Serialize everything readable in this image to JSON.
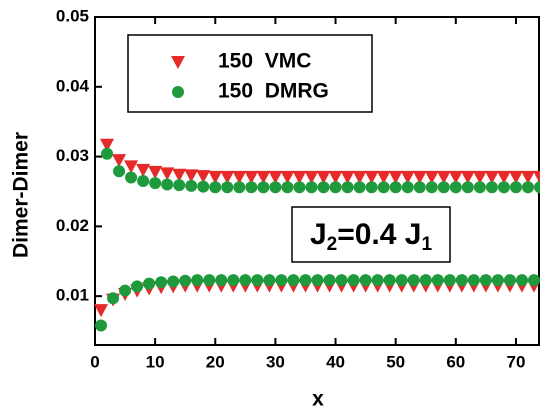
{
  "chart_data": {
    "type": "scatter",
    "xlabel": "x",
    "ylabel": "Dimer-Dimer",
    "annotation": {
      "parts": [
        "J",
        "2",
        "=0.4 J",
        "1"
      ]
    },
    "xlim": [
      0,
      74
    ],
    "ylim": [
      0.003,
      0.05
    ],
    "xticks": [
      0,
      10,
      20,
      30,
      40,
      50,
      60,
      70
    ],
    "yticks": [
      0.01,
      0.02,
      0.03,
      0.04,
      0.05
    ],
    "x": [
      1,
      2,
      3,
      4,
      5,
      6,
      7,
      8,
      9,
      10,
      11,
      12,
      13,
      14,
      15,
      16,
      17,
      18,
      19,
      20,
      21,
      22,
      23,
      24,
      25,
      26,
      27,
      28,
      29,
      30,
      31,
      32,
      33,
      34,
      35,
      36,
      37,
      38,
      39,
      40,
      41,
      42,
      43,
      44,
      45,
      46,
      47,
      48,
      49,
      50,
      51,
      52,
      53,
      54,
      55,
      56,
      57,
      58,
      59,
      60,
      61,
      62,
      63,
      64,
      65,
      66,
      67,
      68,
      69,
      70,
      71,
      72,
      73,
      74
    ],
    "series": [
      {
        "name": "150  VMC",
        "color": "#e62a2a",
        "marker": "triangle-down",
        "values": [
          0.008,
          0.0317,
          0.0095,
          0.0295,
          0.0103,
          0.0286,
          0.0108,
          0.0281,
          0.0111,
          0.0278,
          0.0113,
          0.0276,
          0.0114,
          0.0274,
          0.0115,
          0.0273,
          0.0115,
          0.0272,
          0.0115,
          0.0271,
          0.0115,
          0.0271,
          0.0115,
          0.0271,
          0.0115,
          0.0271,
          0.0115,
          0.0271,
          0.0115,
          0.0271,
          0.0115,
          0.0271,
          0.0115,
          0.0271,
          0.0115,
          0.0271,
          0.0115,
          0.0271,
          0.0115,
          0.0271,
          0.0115,
          0.0271,
          0.0115,
          0.0271,
          0.0115,
          0.0271,
          0.0115,
          0.0271,
          0.0115,
          0.0271,
          0.0115,
          0.0271,
          0.0115,
          0.0271,
          0.0115,
          0.0271,
          0.0115,
          0.0271,
          0.0115,
          0.0271,
          0.0115,
          0.0271,
          0.0115,
          0.0271,
          0.0115,
          0.0271,
          0.0115,
          0.0271,
          0.0115,
          0.0271,
          0.0115,
          0.0271,
          0.0115,
          0.0271
        ]
      },
      {
        "name": "150  DMRG",
        "color": "#1e9a3c",
        "marker": "circle",
        "values": [
          0.0058,
          0.0304,
          0.0097,
          0.0279,
          0.0108,
          0.027,
          0.0114,
          0.0265,
          0.0118,
          0.0262,
          0.012,
          0.026,
          0.0121,
          0.0259,
          0.0122,
          0.0258,
          0.0123,
          0.0257,
          0.0123,
          0.0256,
          0.0123,
          0.0256,
          0.0123,
          0.0256,
          0.0123,
          0.0256,
          0.0123,
          0.0256,
          0.0123,
          0.0256,
          0.0123,
          0.0256,
          0.0123,
          0.0256,
          0.0123,
          0.0256,
          0.0123,
          0.0256,
          0.0123,
          0.0256,
          0.0123,
          0.0256,
          0.0123,
          0.0256,
          0.0123,
          0.0256,
          0.0123,
          0.0256,
          0.0123,
          0.0256,
          0.0123,
          0.0256,
          0.0123,
          0.0256,
          0.0123,
          0.0256,
          0.0123,
          0.0256,
          0.0123,
          0.0256,
          0.0123,
          0.0256,
          0.0123,
          0.0256,
          0.0123,
          0.0256,
          0.0123,
          0.0256,
          0.0123,
          0.0256,
          0.0123,
          0.0256,
          0.0123,
          0.0256
        ]
      }
    ]
  }
}
